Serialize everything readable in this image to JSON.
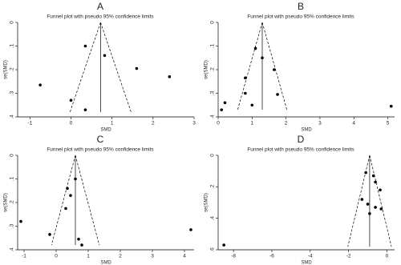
{
  "chart_data": [
    {
      "type": "funnel",
      "label": "A",
      "title": "Funnel plot with pseudo 95% confidence limits",
      "xlabel": "SMD",
      "ylabel": "se(SMD)",
      "x": [
        0.35,
        0.82,
        1.6,
        2.4,
        -0.75,
        0.0,
        0.35
      ],
      "values": [
        0.1,
        0.14,
        0.195,
        0.23,
        0.265,
        0.33,
        0.37
      ],
      "color": "#000000",
      "funnel": {
        "center": 0.72,
        "se_max": 0.38
      },
      "xlim": [
        -1.3,
        3.0
      ],
      "xticks": [
        -1,
        0,
        1,
        2,
        3
      ],
      "ylim": [
        0,
        0.4
      ],
      "yticks": [
        0,
        {
          "value": 0.1,
          "label": ".1"
        },
        {
          "value": 0.2,
          "label": ".2"
        },
        {
          "value": 0.3,
          "label": ".3"
        },
        {
          "value": 0.4,
          "label": ".4"
        }
      ]
    },
    {
      "type": "funnel",
      "label": "B",
      "title": "Funnel plot with pseudo 95% confidence limits",
      "xlabel": "SMD",
      "ylabel": "se(SMD)",
      "x": [
        1.1,
        1.3,
        0.8,
        1.65,
        0.8,
        1.75,
        1.0,
        0.2,
        0.1,
        5.1
      ],
      "values": [
        0.11,
        0.15,
        0.235,
        0.2,
        0.3,
        0.305,
        0.35,
        0.34,
        0.37,
        0.355
      ],
      "color": "#000000",
      "funnel": {
        "center": 1.3,
        "se_max": 0.37
      },
      "xlim": [
        0,
        5.2
      ],
      "xticks": [
        0,
        1,
        2,
        3,
        4,
        5
      ],
      "ylim": [
        0,
        0.4
      ],
      "yticks": [
        0,
        {
          "value": 0.1,
          "label": ".1"
        },
        {
          "value": 0.2,
          "label": ".2"
        },
        {
          "value": 0.3,
          "label": ".3"
        },
        {
          "value": 0.4,
          "label": ".4"
        }
      ]
    },
    {
      "type": "funnel",
      "label": "C",
      "title": "Funnel plot with pseudo 95% confidence limits",
      "xlabel": "SMD",
      "ylabel": "se(SMD)",
      "x": [
        0.6,
        0.35,
        0.45,
        0.3,
        -1.1,
        -0.2,
        0.7,
        0.8,
        4.2
      ],
      "values": [
        0.1,
        0.14,
        0.17,
        0.225,
        0.28,
        0.335,
        0.355,
        0.38,
        0.315
      ],
      "color": "#000000",
      "funnel": {
        "center": 0.6,
        "se_max": 0.38
      },
      "xlim": [
        -1.2,
        4.3
      ],
      "xticks": [
        -1,
        0,
        1,
        2,
        3,
        4
      ],
      "ylim": [
        0,
        0.4
      ],
      "yticks": [
        0,
        {
          "value": 0.1,
          "label": ".1"
        },
        {
          "value": 0.2,
          "label": ".2"
        },
        {
          "value": 0.3,
          "label": ".3"
        },
        {
          "value": 0.4,
          "label": ".4"
        }
      ]
    },
    {
      "type": "funnel",
      "label": "D",
      "title": "Funnel plot with pseudo 95% confidence limits",
      "xlabel": "SMD",
      "ylabel": "se(SMD)",
      "x": [
        -1.1,
        -0.7,
        -0.6,
        -0.35,
        -1.3,
        -1.0,
        -0.6,
        -0.3,
        -0.9,
        -8.5
      ],
      "values": [
        0.11,
        0.13,
        0.17,
        0.22,
        0.28,
        0.31,
        0.33,
        0.34,
        0.37,
        0.57
      ],
      "color": "#000000",
      "funnel": {
        "center": -0.9,
        "se_max": 0.58
      },
      "xlim": [
        -8.8,
        0.4
      ],
      "xticks": [
        -8,
        -6,
        -4,
        -2,
        0
      ],
      "ylim": [
        0,
        0.6
      ],
      "yticks": [
        0,
        {
          "value": 0.2,
          "label": ".2"
        },
        {
          "value": 0.4,
          "label": ".4"
        },
        {
          "value": 0.6,
          "label": ".6"
        }
      ]
    }
  ]
}
